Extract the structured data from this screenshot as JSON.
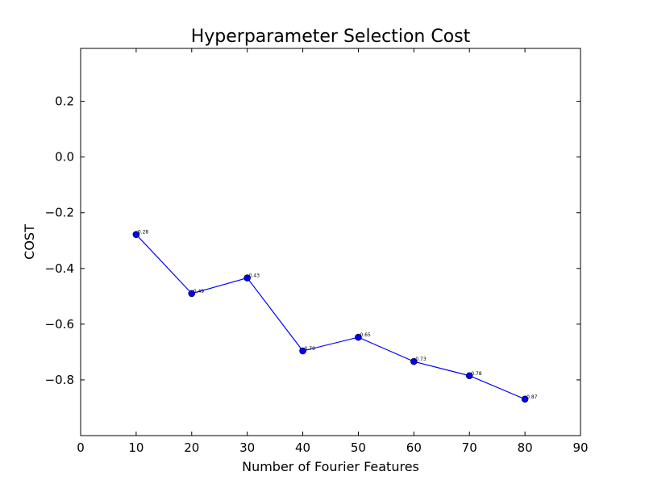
{
  "chart_data": {
    "type": "line",
    "title": "Hyperparameter Selection Cost",
    "xlabel": "Number of Fourier Features",
    "ylabel": "COST",
    "xlim": [
      0,
      90
    ],
    "ylim": [
      -1.0,
      0.39
    ],
    "xticks": [
      0,
      10,
      20,
      30,
      40,
      50,
      60,
      70,
      80,
      90
    ],
    "yticks": [
      -0.8,
      -0.6,
      -0.4,
      -0.2,
      0.0,
      0.2
    ],
    "ytick_labels": [
      "−0.8",
      "−0.6",
      "−0.4",
      "−0.2",
      "0.0",
      "0.2"
    ],
    "grid": false,
    "series": [
      {
        "color": "#0000ff",
        "marker": "circle",
        "x": [
          10,
          20,
          30,
          40,
          50,
          60,
          70,
          80
        ],
        "y": [
          -0.278,
          -0.49,
          -0.434,
          -0.696,
          -0.647,
          -0.734,
          -0.785,
          -0.869
        ],
        "labels": [
          "0.28",
          "0.49",
          "0.43",
          "0.70",
          "0.65",
          "0.73",
          "0.78",
          "0.87"
        ]
      }
    ]
  }
}
